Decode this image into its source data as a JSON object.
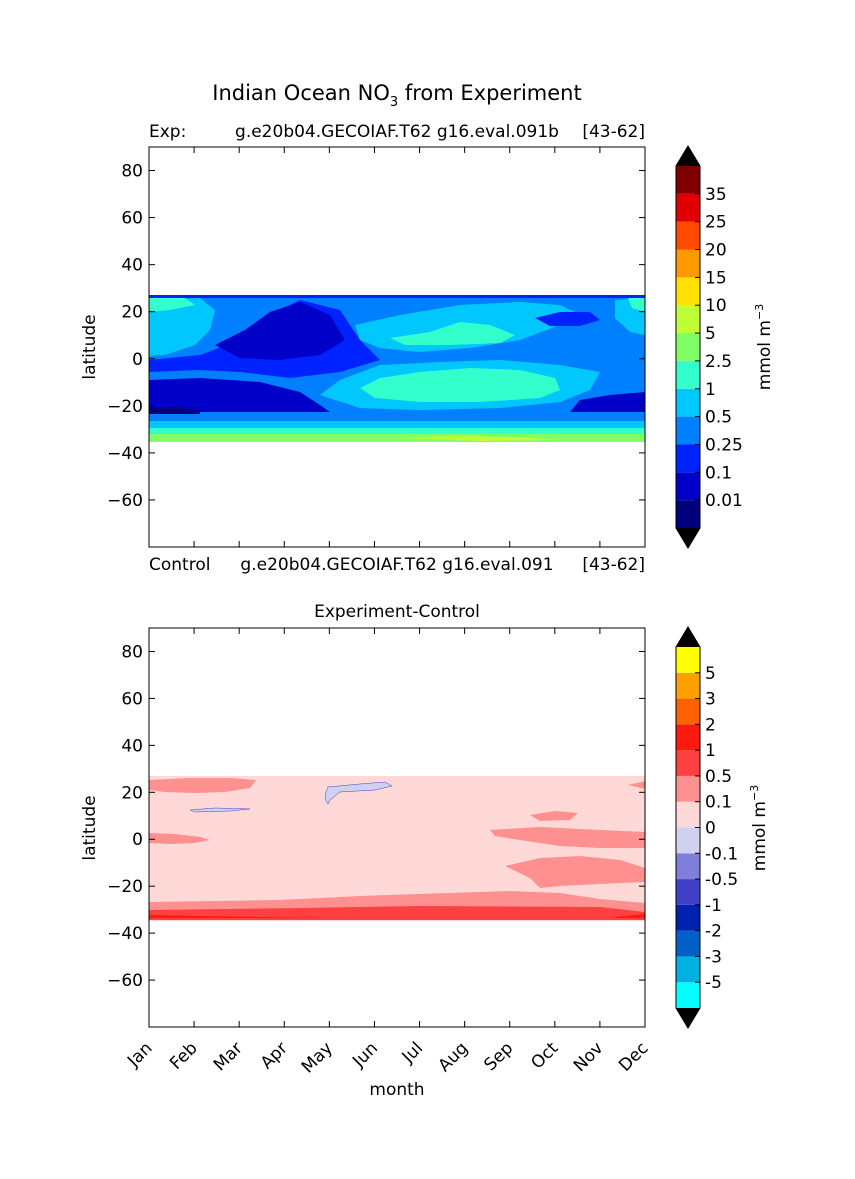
{
  "figure": {
    "title_main": "Indian Ocean NO",
    "title_sub": "3",
    "title_rest": " from Experiment"
  },
  "chart_data": [
    {
      "type": "heatmap",
      "panel": "top",
      "left_label": "Exp:",
      "center_label": "g.e20b04.GECOIAF.T62 g16.eval.091b",
      "right_label": "[43-62]",
      "bottom_left_label": "Control",
      "bottom_center_label": "g.e20b04.GECOIAF.T62 g16.eval.091",
      "bottom_right_label": "[43-62]",
      "ylabel": "latitude",
      "ylim": [
        -80,
        90
      ],
      "yticks": [
        80,
        60,
        40,
        20,
        0,
        -20,
        -40,
        -60
      ],
      "ytick_labels": [
        "80",
        "60",
        "40",
        "20",
        "0",
        "−20",
        "−40",
        "−60"
      ],
      "x_range_months": [
        0,
        11
      ],
      "data_lat_range": [
        -34,
        27
      ],
      "colorbar": {
        "label": "mmol m",
        "label_sup": "−3",
        "levels": [
          "0.01",
          "0.1",
          "0.25",
          "0.5",
          "1",
          "2.5",
          "5",
          "10",
          "15",
          "20",
          "25",
          "35"
        ],
        "colors": [
          "#00007f",
          "#0000c8",
          "#0022ff",
          "#0080ff",
          "#00c8ff",
          "#33ffcc",
          "#80ff66",
          "#c0ff33",
          "#ffe000",
          "#ff9900",
          "#ff4a00",
          "#e00000",
          "#800000"
        ],
        "extend_colors": [
          "#000000",
          "#000000"
        ]
      },
      "regions": [
        {
          "band": [
            -34,
            -31
          ],
          "value_class": "2.5"
        },
        {
          "band": [
            -31,
            -29
          ],
          "value_class": "1"
        },
        {
          "band": [
            -29,
            -26
          ],
          "value_class": "0.5"
        },
        {
          "band": [
            -26,
            -10
          ],
          "value_class": "0.01"
        },
        {
          "band": [
            -10,
            27
          ],
          "value_class": "0.25"
        }
      ]
    },
    {
      "type": "heatmap",
      "panel": "bottom",
      "title": "Experiment-Control",
      "ylabel": "latitude",
      "xlabel": "month",
      "ylim": [
        -80,
        90
      ],
      "yticks": [
        80,
        60,
        40,
        20,
        0,
        -20,
        -40,
        -60
      ],
      "ytick_labels": [
        "80",
        "60",
        "40",
        "20",
        "0",
        "−20",
        "−40",
        "−60"
      ],
      "categories": [
        "Jan",
        "Feb",
        "Mar",
        "Apr",
        "May",
        "Jun",
        "Jul",
        "Aug",
        "Sep",
        "Oct",
        "Nov",
        "Dec"
      ],
      "data_lat_range": [
        -34,
        27
      ],
      "colorbar": {
        "label": "mmol m",
        "label_sup": "−3",
        "levels": [
          "-5",
          "-3",
          "-2",
          "-1",
          "-0.5",
          "-0.1",
          "0",
          "0.1",
          "0.5",
          "1",
          "2",
          "3",
          "5"
        ],
        "colors": [
          "#00ffff",
          "#00b0e0",
          "#0060c8",
          "#0020b0",
          "#4040c8",
          "#8080dc",
          "#d0d0f0",
          "#ffd8d8",
          "#ff9090",
          "#ff4040",
          "#ff1a10",
          "#ff6000",
          "#ffa000",
          "#ffff00"
        ],
        "extend_colors": [
          "#000000",
          "#000000"
        ]
      }
    }
  ]
}
